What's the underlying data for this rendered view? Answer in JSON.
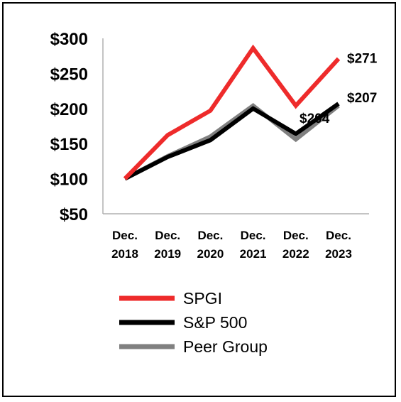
{
  "chart_data": {
    "type": "line",
    "title": "",
    "xlabel": "",
    "ylabel": "",
    "categories": [
      [
        "Dec.",
        "2018"
      ],
      [
        "Dec.",
        "2019"
      ],
      [
        "Dec.",
        "2020"
      ],
      [
        "Dec.",
        "2021"
      ],
      [
        "Dec.",
        "2022"
      ],
      [
        "Dec.",
        "2023"
      ]
    ],
    "y_ticks": [
      "$300",
      "$250",
      "$200",
      "$150",
      "$100",
      "$50"
    ],
    "ylim": [
      50,
      300
    ],
    "grid": false,
    "legend_position": "bottom",
    "series": [
      {
        "name": "SPGI",
        "color": "#ee2b2b",
        "values": [
          100,
          162,
          197,
          286,
          204,
          271
        ]
      },
      {
        "name": "S&P 500",
        "color": "#000000",
        "values": [
          100,
          131,
          155,
          200,
          164,
          207
        ]
      },
      {
        "name": "Peer Group",
        "color": "#808080",
        "values": [
          100,
          132,
          160,
          204,
          156,
          204
        ]
      }
    ],
    "data_labels": [
      {
        "series": 0,
        "index": 5,
        "text": "$271"
      },
      {
        "series": 1,
        "index": 5,
        "text": "$207"
      },
      {
        "series": 2,
        "index": 5,
        "text": "$204"
      }
    ]
  }
}
